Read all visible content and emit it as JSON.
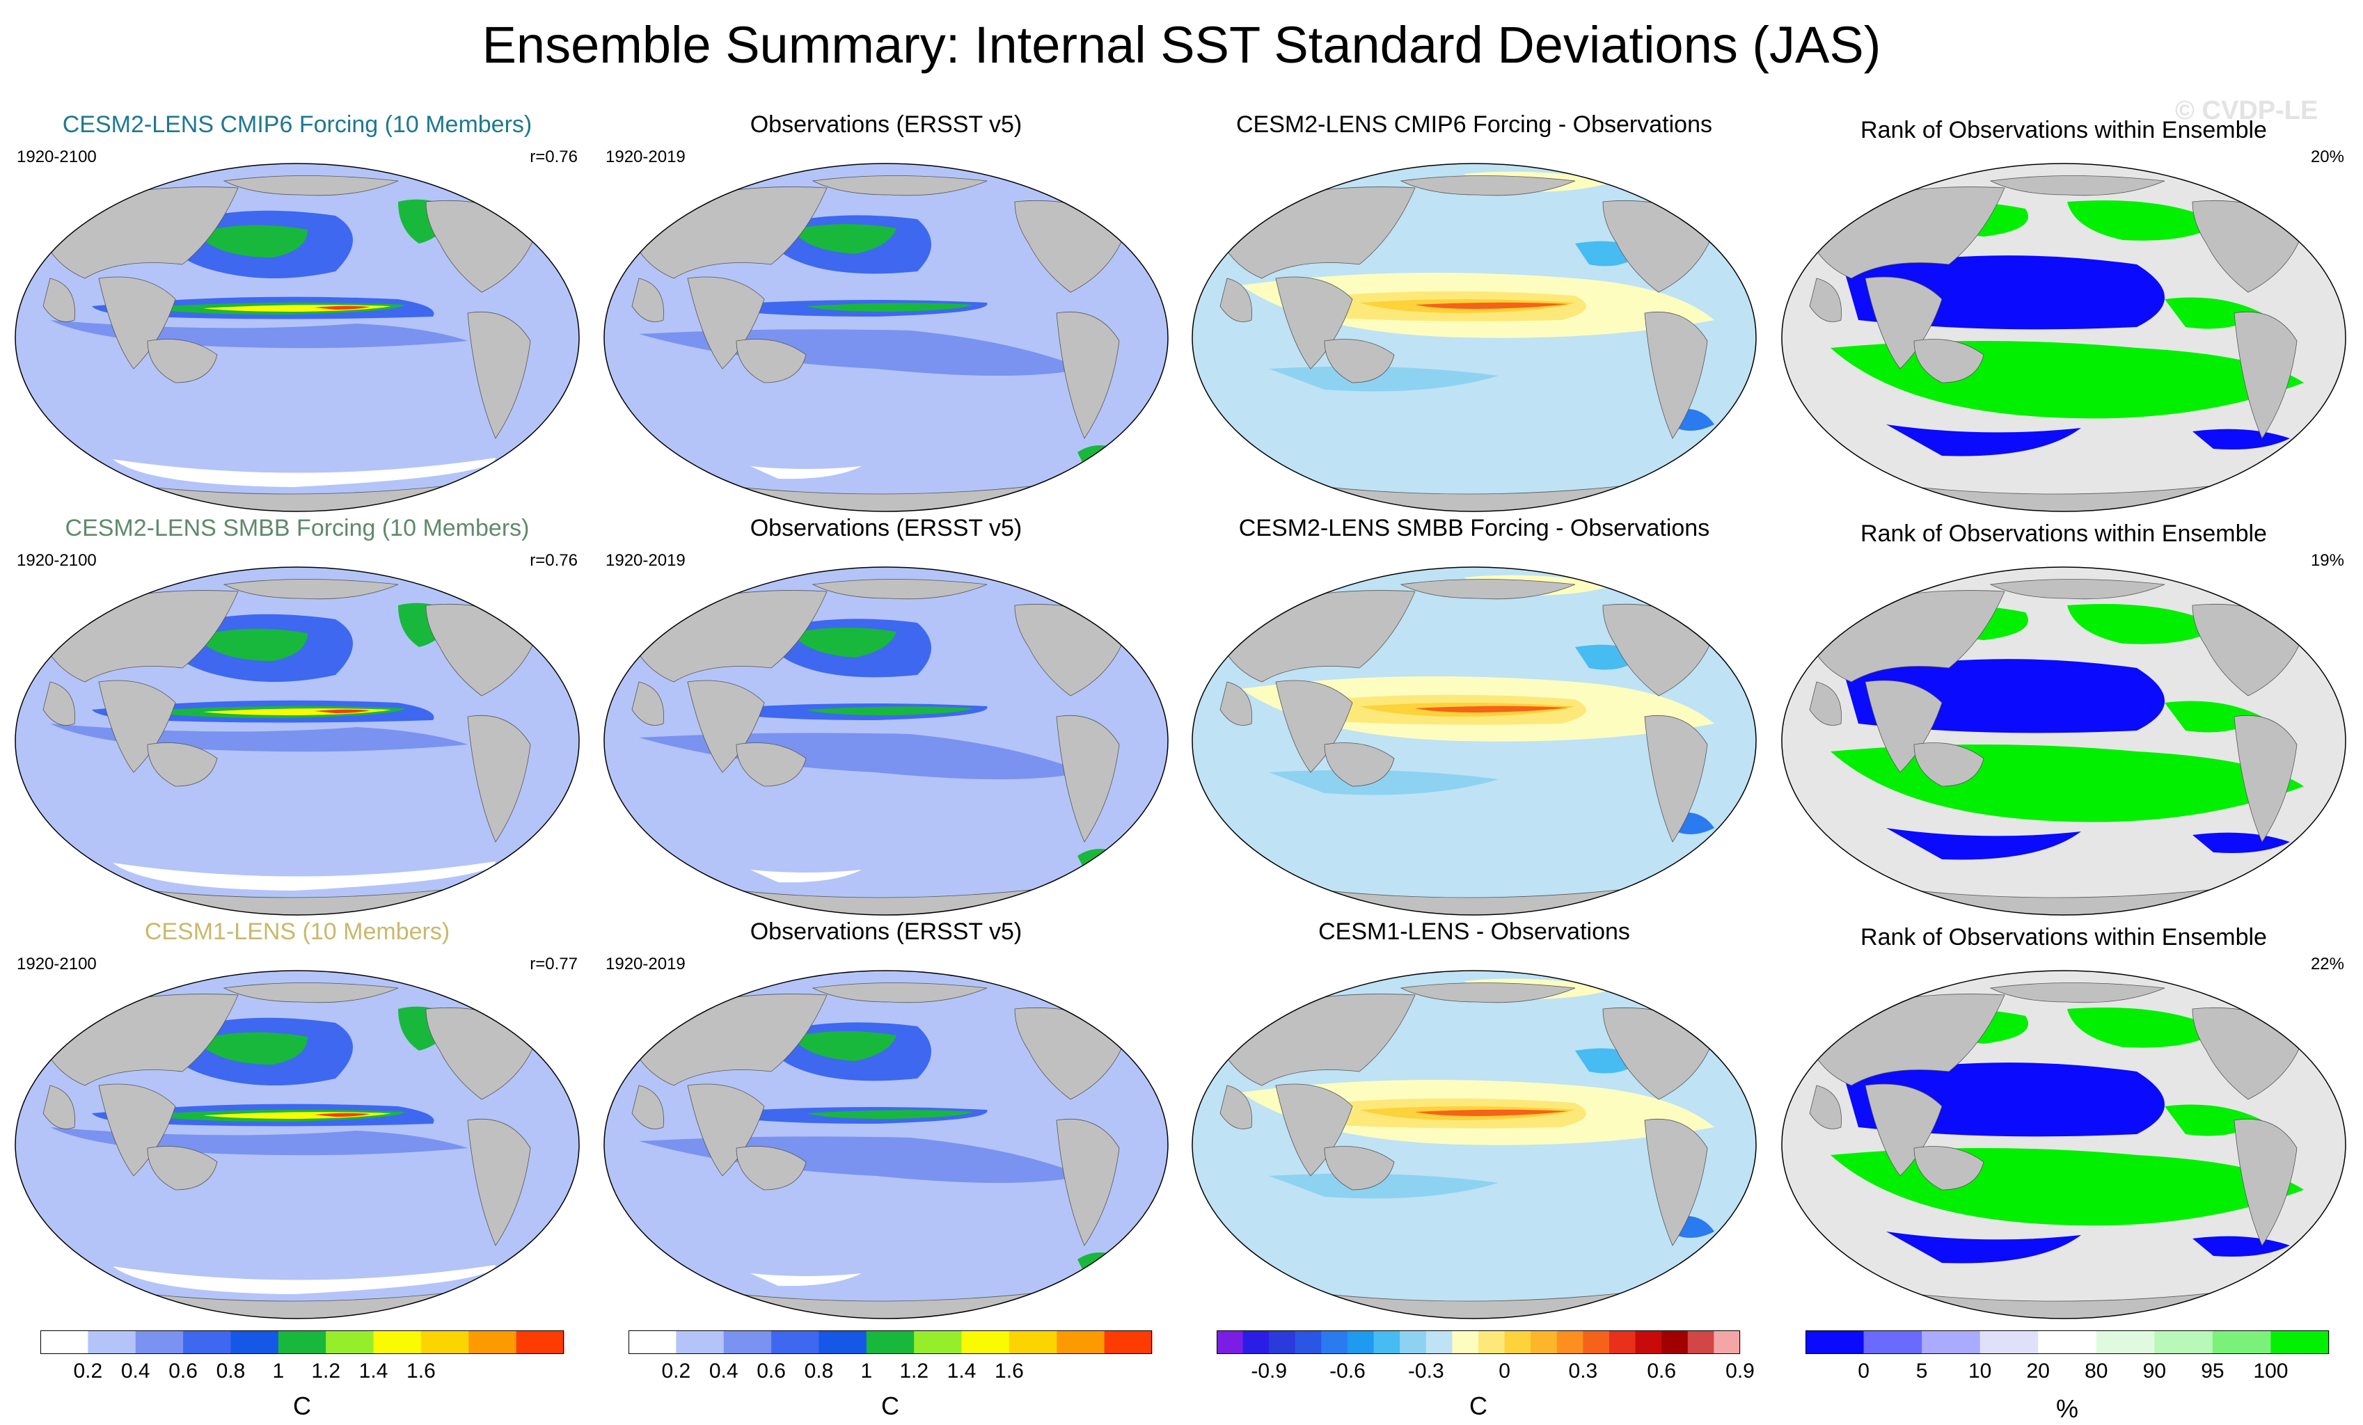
{
  "title": "Ensemble Summary: Internal SST Standard Deviations (JAS)",
  "watermark": "© CVDP-LE",
  "colors": {
    "land": "#c0c0c0",
    "ocean_bg": "#b4c4f8",
    "ensemble_title_row1": "#1e7891",
    "ensemble_title_row2": "#5e8a6b",
    "ensemble_title_row3": "#c9b86a"
  },
  "rows": [
    {
      "ensemble": {
        "title": "CESM2-LENS CMIP6 Forcing (10 Members)",
        "years": "1920-2100",
        "corr": "r=0.76"
      },
      "observations": {
        "title": "Observations (ERSST v5)",
        "years": "1920-2019"
      },
      "difference": {
        "title": "CESM2-LENS CMIP6 Forcing - Observations"
      },
      "rank": {
        "title": "Rank of Observations within Ensemble",
        "percent": "20%"
      }
    },
    {
      "ensemble": {
        "title": "CESM2-LENS SMBB Forcing (10 Members)",
        "years": "1920-2100",
        "corr": "r=0.76"
      },
      "observations": {
        "title": "Observations (ERSST v5)",
        "years": "1920-2019"
      },
      "difference": {
        "title": "CESM2-LENS SMBB Forcing - Observations"
      },
      "rank": {
        "title": "Rank of Observations within Ensemble",
        "percent": "19%"
      }
    },
    {
      "ensemble": {
        "title": "CESM1-LENS (10 Members)",
        "years": "1920-2100",
        "corr": "r=0.77"
      },
      "observations": {
        "title": "Observations (ERSST v5)",
        "years": "1920-2019"
      },
      "difference": {
        "title": "CESM1-LENS - Observations"
      },
      "rank": {
        "title": "Rank of Observations within Ensemble",
        "percent": "22%"
      }
    }
  ],
  "colorbars": [
    {
      "id": "std-model",
      "unit": "C",
      "colors": [
        "#ffffff",
        "#b4c4f8",
        "#7a92f0",
        "#3e68f0",
        "#1558e8",
        "#18b83c",
        "#96ee2a",
        "#fafa00",
        "#fcd400",
        "#fc9a00",
        "#fc3c00"
      ],
      "labels": [
        "0.2",
        "0.4",
        "0.6",
        "0.8",
        "1",
        "1.2",
        "1.4",
        "1.6"
      ]
    },
    {
      "id": "std-obs",
      "unit": "C",
      "colors": [
        "#ffffff",
        "#b4c4f8",
        "#7a92f0",
        "#3e68f0",
        "#1558e8",
        "#18b83c",
        "#96ee2a",
        "#fafa00",
        "#fcd400",
        "#fc9a00",
        "#fc3c00"
      ],
      "labels": [
        "0.2",
        "0.4",
        "0.6",
        "0.8",
        "1",
        "1.2",
        "1.4",
        "1.6"
      ]
    },
    {
      "id": "difference",
      "unit": "C",
      "colors": [
        "#7a1ee6",
        "#2a1ee6",
        "#2a3adc",
        "#2a56e6",
        "#2a7af0",
        "#1e9af0",
        "#46bcf2",
        "#8ed2f2",
        "#bfe2f4",
        "#fdfdc0",
        "#fde97a",
        "#fdd23a",
        "#fdb62a",
        "#fd8f1e",
        "#f5621a",
        "#e8301a",
        "#c80a0a",
        "#a00000",
        "#d24646",
        "#f4a6a6"
      ],
      "labels": [
        "-0.9",
        "-0.6",
        "-0.3",
        "0",
        "0.3",
        "0.6",
        "0.9"
      ]
    },
    {
      "id": "rank",
      "unit": "%",
      "colors": [
        "#0a0aff",
        "#6a6aff",
        "#aaaaff",
        "#e0e0fa",
        "#ffffff",
        "#e0fae0",
        "#b8f8b8",
        "#7af27a",
        "#00f000"
      ],
      "labels": [
        "0",
        "5",
        "10",
        "20",
        "80",
        "90",
        "95",
        "100"
      ]
    }
  ]
}
